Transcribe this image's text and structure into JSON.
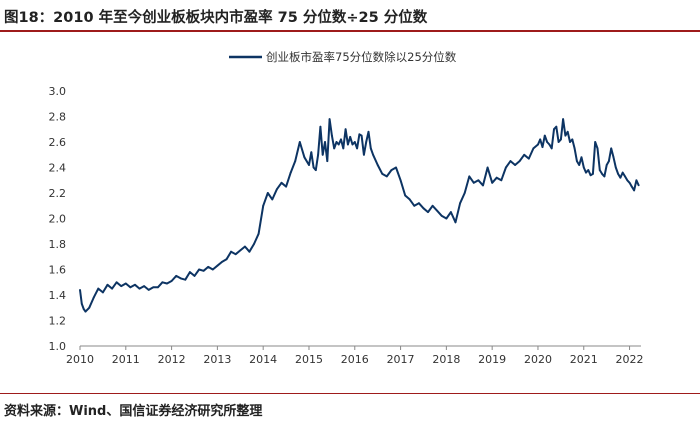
{
  "title": "图18：2010 年至今创业板板块内市盈率 75 分位数÷25 分位数",
  "source": "资料来源：Wind、国信证券经济研究所整理",
  "colors": {
    "line": "#0d3463",
    "rule": "#9e1b1b",
    "axis": "#888888"
  },
  "chart_data": {
    "type": "line",
    "title": "",
    "xlabel": "",
    "ylabel": "",
    "xlim": [
      2010.0,
      2022.25
    ],
    "ylim": [
      1.0,
      3.0
    ],
    "grid": false,
    "legend_position": "top-center",
    "x_tick_values": [
      2010,
      2011,
      2012,
      2013,
      2014,
      2015,
      2016,
      2017,
      2018,
      2019,
      2020,
      2021,
      2022
    ],
    "x_tick_labels": [
      "2010",
      "2011",
      "2012",
      "2013",
      "2014",
      "2015",
      "2016",
      "2017",
      "2018",
      "2019",
      "2020",
      "2021",
      "2022"
    ],
    "y_tick_values": [
      1.0,
      1.2,
      1.4,
      1.6,
      1.8,
      2.0,
      2.2,
      2.4,
      2.6,
      2.8,
      3.0
    ],
    "y_tick_labels": [
      "1.0",
      "1.2",
      "1.4",
      "1.6",
      "1.8",
      "2.0",
      "2.2",
      "2.4",
      "2.6",
      "2.8",
      "3.0"
    ],
    "series": [
      {
        "name": "创业板市盈率75分位数除以25分位数",
        "x": [
          2010.0,
          2010.04,
          2010.08,
          2010.12,
          2010.2,
          2010.3,
          2010.4,
          2010.5,
          2010.6,
          2010.7,
          2010.8,
          2010.9,
          2011.0,
          2011.1,
          2011.2,
          2011.3,
          2011.4,
          2011.5,
          2011.6,
          2011.7,
          2011.8,
          2011.9,
          2012.0,
          2012.1,
          2012.2,
          2012.3,
          2012.4,
          2012.5,
          2012.6,
          2012.7,
          2012.8,
          2012.9,
          2013.0,
          2013.1,
          2013.2,
          2013.3,
          2013.4,
          2013.5,
          2013.6,
          2013.65,
          2013.7,
          2013.8,
          2013.9,
          2014.0,
          2014.1,
          2014.2,
          2014.3,
          2014.4,
          2014.5,
          2014.6,
          2014.7,
          2014.8,
          2014.9,
          2015.0,
          2015.05,
          2015.1,
          2015.15,
          2015.2,
          2015.25,
          2015.3,
          2015.35,
          2015.4,
          2015.45,
          2015.5,
          2015.55,
          2015.6,
          2015.65,
          2015.7,
          2015.75,
          2015.8,
          2015.85,
          2015.9,
          2015.95,
          2016.0,
          2016.05,
          2016.1,
          2016.15,
          2016.2,
          2016.25,
          2016.3,
          2016.35,
          2016.4,
          2016.5,
          2016.6,
          2016.7,
          2016.8,
          2016.9,
          2017.0,
          2017.1,
          2017.2,
          2017.3,
          2017.4,
          2017.5,
          2017.6,
          2017.7,
          2017.8,
          2017.9,
          2018.0,
          2018.1,
          2018.2,
          2018.3,
          2018.4,
          2018.5,
          2018.6,
          2018.7,
          2018.8,
          2018.9,
          2019.0,
          2019.1,
          2019.2,
          2019.3,
          2019.4,
          2019.5,
          2019.6,
          2019.7,
          2019.8,
          2019.9,
          2020.0,
          2020.05,
          2020.1,
          2020.15,
          2020.2,
          2020.25,
          2020.3,
          2020.35,
          2020.4,
          2020.45,
          2020.5,
          2020.55,
          2020.6,
          2020.65,
          2020.7,
          2020.75,
          2020.8,
          2020.85,
          2020.9,
          2020.95,
          2021.0,
          2021.05,
          2021.1,
          2021.15,
          2021.2,
          2021.25,
          2021.3,
          2021.35,
          2021.4,
          2021.45,
          2021.5,
          2021.55,
          2021.6,
          2021.65,
          2021.7,
          2021.75,
          2021.8,
          2021.85,
          2021.9,
          2021.95,
          2022.0,
          2022.05,
          2022.1,
          2022.15,
          2022.2
        ],
        "values": [
          1.44,
          1.33,
          1.29,
          1.27,
          1.3,
          1.38,
          1.45,
          1.42,
          1.48,
          1.45,
          1.5,
          1.47,
          1.49,
          1.46,
          1.48,
          1.45,
          1.47,
          1.44,
          1.46,
          1.46,
          1.5,
          1.49,
          1.51,
          1.55,
          1.53,
          1.52,
          1.58,
          1.55,
          1.6,
          1.59,
          1.62,
          1.6,
          1.63,
          1.66,
          1.68,
          1.74,
          1.72,
          1.75,
          1.78,
          1.76,
          1.74,
          1.8,
          1.88,
          2.1,
          2.2,
          2.15,
          2.23,
          2.28,
          2.25,
          2.36,
          2.45,
          2.6,
          2.48,
          2.42,
          2.52,
          2.4,
          2.38,
          2.5,
          2.72,
          2.5,
          2.6,
          2.45,
          2.78,
          2.65,
          2.55,
          2.6,
          2.58,
          2.62,
          2.55,
          2.7,
          2.58,
          2.64,
          2.58,
          2.6,
          2.55,
          2.66,
          2.65,
          2.5,
          2.6,
          2.68,
          2.55,
          2.5,
          2.42,
          2.35,
          2.33,
          2.38,
          2.4,
          2.3,
          2.18,
          2.15,
          2.1,
          2.12,
          2.08,
          2.05,
          2.1,
          2.06,
          2.02,
          2.0,
          2.05,
          1.97,
          2.12,
          2.2,
          2.33,
          2.28,
          2.3,
          2.26,
          2.4,
          2.28,
          2.32,
          2.3,
          2.4,
          2.45,
          2.42,
          2.45,
          2.5,
          2.47,
          2.55,
          2.58,
          2.62,
          2.56,
          2.65,
          2.6,
          2.58,
          2.55,
          2.7,
          2.72,
          2.6,
          2.62,
          2.78,
          2.65,
          2.68,
          2.6,
          2.62,
          2.55,
          2.45,
          2.42,
          2.48,
          2.4,
          2.36,
          2.38,
          2.34,
          2.35,
          2.6,
          2.55,
          2.38,
          2.35,
          2.33,
          2.42,
          2.45,
          2.55,
          2.48,
          2.4,
          2.35,
          2.32,
          2.36,
          2.33,
          2.3,
          2.28,
          2.25,
          2.22,
          2.3,
          2.26
        ]
      }
    ]
  }
}
